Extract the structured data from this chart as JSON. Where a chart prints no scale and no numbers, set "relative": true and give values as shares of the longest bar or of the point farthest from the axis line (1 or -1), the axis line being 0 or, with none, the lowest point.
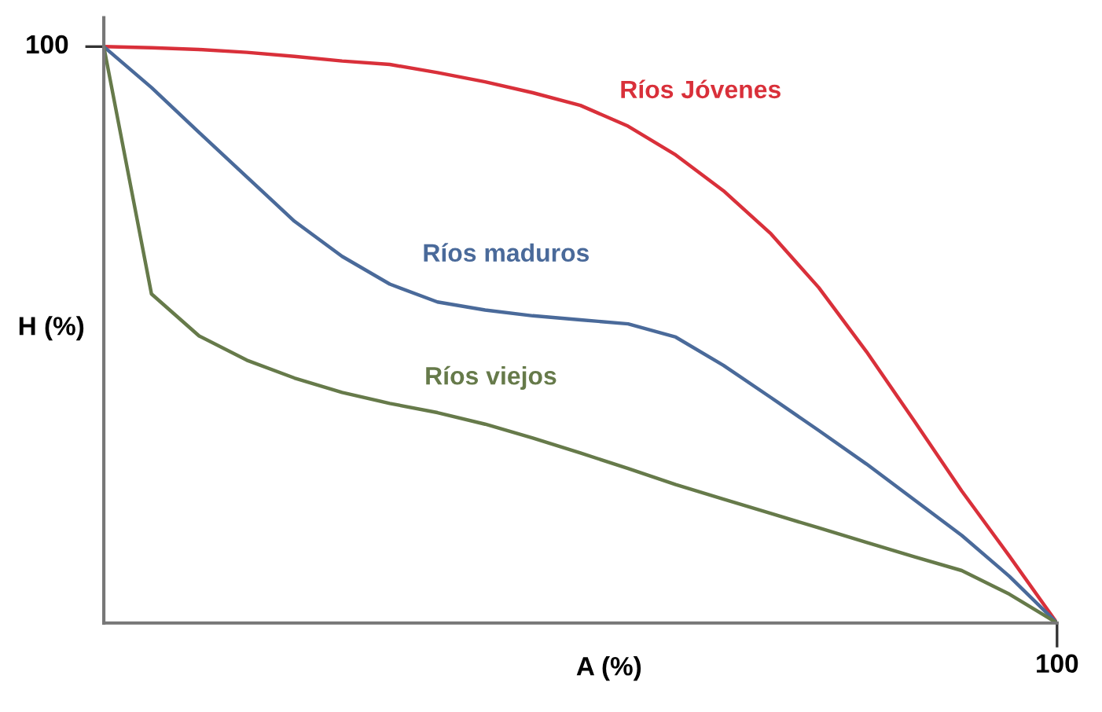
{
  "chart_data": {
    "type": "line",
    "xlabel": "A (%)",
    "ylabel": "H (%)",
    "relative": true,
    "legend": false,
    "marker": "none",
    "line_style": "solid",
    "annotations": [
      "100",
      "100"
    ],
    "categories": [
      null,
      null,
      null,
      null,
      null,
      null,
      null,
      null,
      null,
      null,
      null,
      null,
      null,
      null,
      null,
      null,
      null,
      null,
      null,
      null,
      null
    ],
    "series": [
      {
        "name": "Ríos Jóvenes",
        "color": "#d9303a",
        "values": [
          1,
          0.998,
          0.995,
          0.99,
          0.983,
          0.975,
          0.969,
          0.955,
          0.939,
          0.92,
          0.898,
          0.862,
          0.812,
          0.75,
          0.675,
          0.582,
          0.471,
          0.351,
          0.229,
          0.116,
          0
        ]
      },
      {
        "name": "Ríos maduros",
        "color": "#4a6a9a",
        "values": [
          1,
          0.929,
          0.851,
          0.774,
          0.697,
          0.636,
          0.588,
          0.557,
          0.543,
          0.533,
          0.526,
          0.519,
          0.496,
          0.447,
          0.391,
          0.334,
          0.276,
          0.214,
          0.152,
          0.081,
          0
        ]
      },
      {
        "name": "Ríos viejos",
        "color": "#667a4a",
        "values": [
          1,
          0.571,
          0.498,
          0.456,
          0.425,
          0.4,
          0.381,
          0.365,
          0.345,
          0.321,
          0.295,
          0.268,
          0.24,
          0.215,
          0.19,
          0.165,
          0.14,
          0.115,
          0.091,
          0.05,
          0
        ]
      }
    ]
  }
}
